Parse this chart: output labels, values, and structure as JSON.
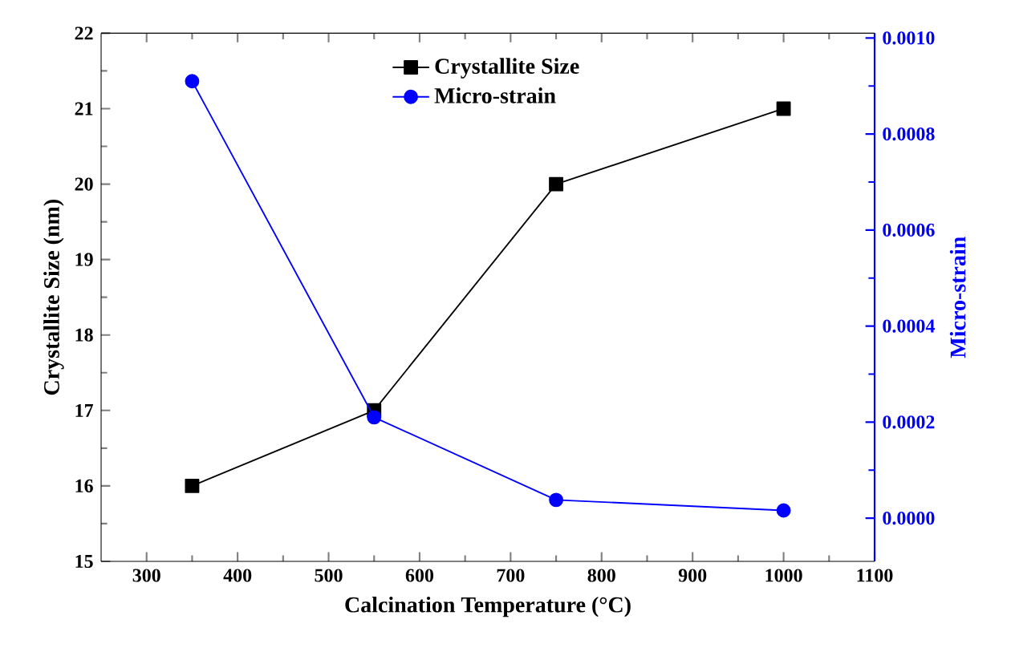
{
  "chart_data": {
    "type": "line",
    "x": [
      350,
      550,
      750,
      1000
    ],
    "series": [
      {
        "name": "Crystallite Size",
        "color": "#000000",
        "marker": "square",
        "values": [
          16,
          17,
          20,
          21
        ]
      },
      {
        "name": "Micro-strain",
        "color": "#0000ff",
        "marker": "circle",
        "axis": "y2",
        "values": [
          0.00091,
          0.00021,
          3.8e-05,
          1.6e-05
        ]
      }
    ],
    "xlabel": "Calcination Temperature (°C)",
    "ylabel": "Crystallite Size (nm)",
    "y2label": "Micro-strain",
    "xlim": [
      250,
      1100
    ],
    "xticks": [
      300,
      400,
      500,
      600,
      700,
      800,
      900,
      1000,
      1100
    ],
    "ylim": [
      15,
      22
    ],
    "yticks": [
      15,
      16,
      17,
      18,
      19,
      20,
      21,
      22
    ],
    "y2lim": [
      -9e-05,
      0.00101
    ],
    "y2ticks": [
      {
        "value": 0,
        "label": "0.0000"
      },
      {
        "value": 0.0002,
        "label": "0.0002"
      },
      {
        "value": 0.0004,
        "label": "0.0004"
      },
      {
        "value": 0.0006,
        "label": "0.0006"
      },
      {
        "value": 0.0008,
        "label": "0.0008"
      },
      {
        "value": 0.001,
        "label": "0.0010"
      }
    ],
    "legend": "top",
    "grid": false,
    "line_style": "solid"
  }
}
